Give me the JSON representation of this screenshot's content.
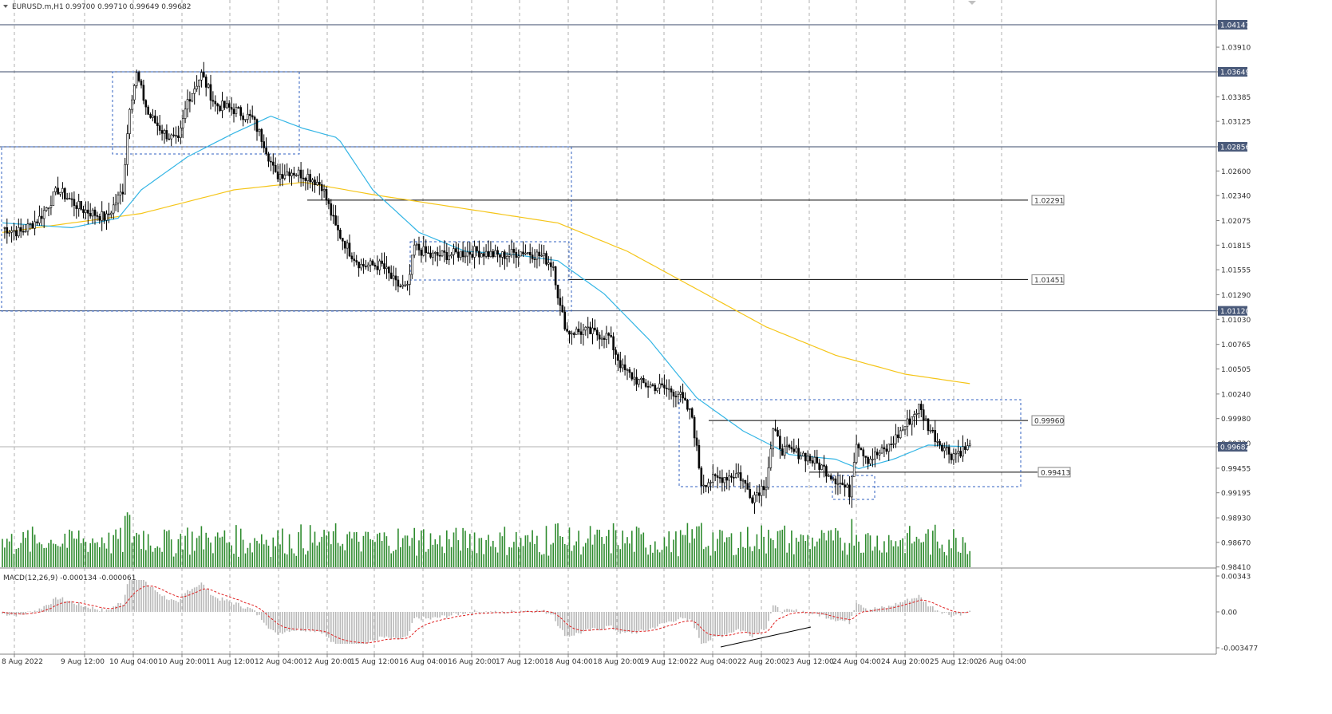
{
  "header": {
    "symbol_text": "EURUSD.m,H1",
    "ohlc_text": "0.99700 0.99710 0.99649 0.99682"
  },
  "macd": {
    "label": "MACD(12,26,9) -0.000134 -0.000061",
    "ticks": [
      "0.00343",
      "0.00",
      "-0.003477"
    ]
  },
  "chart_data": {
    "type": "candlestick",
    "symbol": "EURUSD.m",
    "timeframe": "H1",
    "price_ticks": [
      "1.04147",
      "1.03910",
      "1.03649",
      "1.03385",
      "1.03125",
      "1.02856",
      "1.02600",
      "1.02340",
      "1.02075",
      "1.01815",
      "1.01555",
      "1.01290",
      "1.01120",
      "1.01030",
      "1.00765",
      "1.00505",
      "1.00240",
      "0.99980",
      "0.99720",
      "0.99682",
      "0.99455",
      "0.99195",
      "0.98930",
      "0.98670",
      "0.98410"
    ],
    "highlight_ticks": [
      "1.04147",
      "1.03649",
      "1.02856",
      "1.01120",
      "0.99682"
    ],
    "time_labels": [
      "8 Aug 2022",
      "9 Aug 12:00",
      "10 Aug 04:00",
      "10 Aug 20:00",
      "11 Aug 12:00",
      "12 Aug 04:00",
      "12 Aug 20:00",
      "15 Aug 12:00",
      "16 Aug 04:00",
      "16 Aug 20:00",
      "17 Aug 12:00",
      "18 Aug 04:00",
      "18 Aug 20:00",
      "19 Aug 12:00",
      "22 Aug 04:00",
      "22 Aug 20:00",
      "23 Aug 12:00",
      "24 Aug 04:00",
      "24 Aug 20:00",
      "25 Aug 12:00",
      "26 Aug 04:00"
    ],
    "level_labels": [
      "1.02291",
      "1.01451",
      "0.99960",
      "0.99413"
    ],
    "key_points": [
      {
        "t": 0,
        "p": 1.02
      },
      {
        "t": 8,
        "p": 1.0195
      },
      {
        "t": 16,
        "p": 1.021
      },
      {
        "t": 24,
        "p": 1.024
      },
      {
        "t": 34,
        "p": 1.022
      },
      {
        "t": 45,
        "p": 1.021
      },
      {
        "t": 52,
        "p": 1.024
      },
      {
        "t": 55,
        "p": 1.033
      },
      {
        "t": 58,
        "p": 1.0362
      },
      {
        "t": 63,
        "p": 1.032
      },
      {
        "t": 70,
        "p": 1.03
      },
      {
        "t": 76,
        "p": 1.029
      },
      {
        "t": 80,
        "p": 1.0335
      },
      {
        "t": 86,
        "p": 1.0362
      },
      {
        "t": 92,
        "p": 1.033
      },
      {
        "t": 100,
        "p": 1.0325
      },
      {
        "t": 108,
        "p": 1.0315
      },
      {
        "t": 113,
        "p": 1.029
      },
      {
        "t": 118,
        "p": 1.0255
      },
      {
        "t": 124,
        "p": 1.026
      },
      {
        "t": 132,
        "p": 1.0255
      },
      {
        "t": 138,
        "p": 1.0245
      },
      {
        "t": 144,
        "p": 1.02
      },
      {
        "t": 150,
        "p": 1.0175
      },
      {
        "t": 155,
        "p": 1.016
      },
      {
        "t": 164,
        "p": 1.016
      },
      {
        "t": 170,
        "p": 1.014
      },
      {
        "t": 175,
        "p": 1.0135
      },
      {
        "t": 178,
        "p": 1.018
      },
      {
        "t": 185,
        "p": 1.017
      },
      {
        "t": 195,
        "p": 1.0172
      },
      {
        "t": 205,
        "p": 1.0175
      },
      {
        "t": 215,
        "p": 1.017
      },
      {
        "t": 225,
        "p": 1.0175
      },
      {
        "t": 233,
        "p": 1.017
      },
      {
        "t": 238,
        "p": 1.016
      },
      {
        "t": 241,
        "p": 1.0115
      },
      {
        "t": 244,
        "p": 1.009
      },
      {
        "t": 252,
        "p": 1.009
      },
      {
        "t": 262,
        "p": 1.0085
      },
      {
        "t": 268,
        "p": 1.005
      },
      {
        "t": 276,
        "p": 1.0035
      },
      {
        "t": 286,
        "p": 1.003
      },
      {
        "t": 292,
        "p": 1.0025
      },
      {
        "t": 298,
        "p": 1.0
      },
      {
        "t": 302,
        "p": 0.993
      },
      {
        "t": 310,
        "p": 0.9935
      },
      {
        "t": 318,
        "p": 0.994
      },
      {
        "t": 324,
        "p": 0.9915
      },
      {
        "t": 330,
        "p": 0.993
      },
      {
        "t": 333,
        "p": 0.9985
      },
      {
        "t": 337,
        "p": 0.9965
      },
      {
        "t": 346,
        "p": 0.996
      },
      {
        "t": 355,
        "p": 0.9945
      },
      {
        "t": 362,
        "p": 0.993
      },
      {
        "t": 366,
        "p": 0.992
      },
      {
        "t": 369,
        "p": 0.9975
      },
      {
        "t": 374,
        "p": 0.9955
      },
      {
        "t": 382,
        "p": 0.9965
      },
      {
        "t": 390,
        "p": 0.999
      },
      {
        "t": 396,
        "p": 1.001
      },
      {
        "t": 400,
        "p": 0.999
      },
      {
        "t": 404,
        "p": 0.9975
      },
      {
        "t": 410,
        "p": 0.996
      },
      {
        "t": 418,
        "p": 0.9968
      }
    ],
    "ma_fast": [
      {
        "t": 0,
        "p": 1.0205
      },
      {
        "t": 30,
        "p": 1.02
      },
      {
        "t": 50,
        "p": 1.021
      },
      {
        "t": 60,
        "p": 1.024
      },
      {
        "t": 80,
        "p": 1.0275
      },
      {
        "t": 100,
        "p": 1.03
      },
      {
        "t": 116,
        "p": 1.0318
      },
      {
        "t": 130,
        "p": 1.0305
      },
      {
        "t": 145,
        "p": 1.0295
      },
      {
        "t": 160,
        "p": 1.024
      },
      {
        "t": 180,
        "p": 1.0195
      },
      {
        "t": 200,
        "p": 1.0175
      },
      {
        "t": 220,
        "p": 1.0172
      },
      {
        "t": 240,
        "p": 1.0165
      },
      {
        "t": 260,
        "p": 1.013
      },
      {
        "t": 280,
        "p": 1.008
      },
      {
        "t": 300,
        "p": 1.002
      },
      {
        "t": 320,
        "p": 0.9985
      },
      {
        "t": 340,
        "p": 0.996
      },
      {
        "t": 360,
        "p": 0.9955
      },
      {
        "t": 370,
        "p": 0.9945
      },
      {
        "t": 385,
        "p": 0.9955
      },
      {
        "t": 400,
        "p": 0.997
      },
      {
        "t": 418,
        "p": 0.9968
      }
    ],
    "ma_slow": [
      {
        "t": 0,
        "p": 1.0195
      },
      {
        "t": 60,
        "p": 1.0215
      },
      {
        "t": 100,
        "p": 1.024
      },
      {
        "t": 130,
        "p": 1.0248
      },
      {
        "t": 160,
        "p": 1.0235
      },
      {
        "t": 200,
        "p": 1.022
      },
      {
        "t": 240,
        "p": 1.0205
      },
      {
        "t": 270,
        "p": 1.0175
      },
      {
        "t": 300,
        "p": 1.0135
      },
      {
        "t": 330,
        "p": 1.0095
      },
      {
        "t": 360,
        "p": 1.0065
      },
      {
        "t": 390,
        "p": 1.0045
      },
      {
        "t": 418,
        "p": 1.0035
      }
    ]
  }
}
